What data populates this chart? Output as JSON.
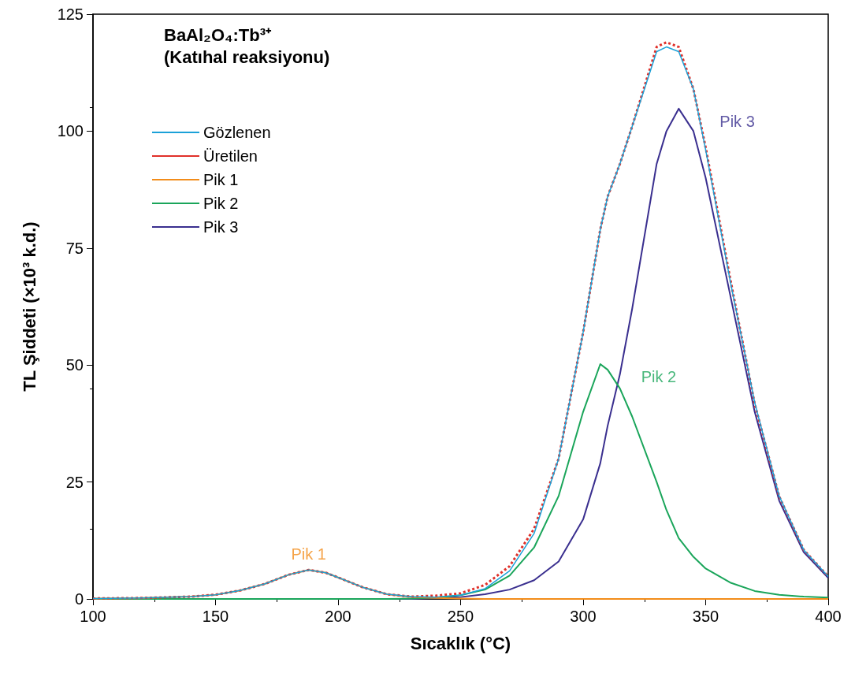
{
  "chart_data": {
    "type": "line",
    "title": "BaAl₂O₄:Tb³⁺",
    "subtitle": "(Katıhal reaksiyonu)",
    "xlabel": "Sıcaklık (°C)",
    "ylabel": "TL Şiddeti (×10³ k.d.)",
    "x": [
      100,
      120,
      140,
      150,
      160,
      170,
      180,
      188,
      195,
      200,
      210,
      220,
      230,
      240,
      250,
      260,
      270,
      280,
      290,
      300,
      307,
      310,
      315,
      320,
      330,
      334,
      339,
      345,
      350,
      360,
      370,
      380,
      390,
      400
    ],
    "series": [
      {
        "name": "Gözlenen",
        "color": "#1ba1d8",
        "values": [
          0.1,
          0.2,
          0.5,
          0.9,
          1.8,
          3.2,
          5.2,
          6.2,
          5.6,
          4.6,
          2.5,
          1.0,
          0.5,
          0.4,
          0.8,
          2.2,
          6,
          14,
          30,
          57,
          79,
          86,
          93,
          101,
          117,
          118,
          117,
          109,
          96,
          68,
          42,
          22,
          10.5,
          4.8
        ]
      },
      {
        "name": "Üretilen",
        "color": "#e0302a",
        "line_style": "dotted",
        "values": [
          0.1,
          0.2,
          0.5,
          0.9,
          1.8,
          3.2,
          5.2,
          6.2,
          5.6,
          4.6,
          2.5,
          1.0,
          0.5,
          0.7,
          1.2,
          3,
          7,
          15,
          30,
          57,
          79,
          86,
          93,
          101,
          118,
          119,
          118,
          109,
          96.5,
          68.5,
          41.7,
          21.9,
          10.5,
          4.8
        ]
      },
      {
        "name": "Pik 1",
        "color": "#f28c1a",
        "values": [
          0.1,
          0.2,
          0.5,
          0.9,
          1.8,
          3.2,
          5.2,
          6.2,
          5.6,
          4.6,
          2.5,
          1.0,
          0.4,
          0.2,
          0.1,
          0,
          0,
          0,
          0,
          0,
          0,
          0,
          0,
          0,
          0,
          0,
          0,
          0,
          0,
          0,
          0,
          0,
          0,
          0
        ]
      },
      {
        "name": "Pik 2",
        "color": "#1aa55a",
        "values": [
          0,
          0,
          0,
          0,
          0,
          0,
          0,
          0,
          0,
          0,
          0,
          0,
          0.1,
          0.3,
          0.8,
          2,
          5,
          11,
          22,
          40,
          50.2,
          49,
          45,
          39,
          25,
          19,
          13,
          9,
          6.5,
          3.5,
          1.7,
          0.9,
          0.5,
          0.3
        ]
      },
      {
        "name": "Pik 3",
        "color": "#3a2f8f",
        "values": [
          0,
          0,
          0,
          0,
          0,
          0,
          0,
          0,
          0,
          0,
          0,
          0,
          0,
          0.2,
          0.4,
          1,
          2,
          4,
          8,
          17,
          29,
          37,
          48,
          62,
          93,
          100,
          104.8,
          100,
          90,
          65,
          40,
          21,
          10,
          4.5
        ]
      }
    ],
    "annotations": [
      "Pik 1",
      "Pik 2",
      "Pik 3"
    ],
    "xlim": [
      100,
      400
    ],
    "xticks": [
      100,
      150,
      200,
      250,
      300,
      350,
      400
    ],
    "ylim": [
      0,
      125
    ],
    "yticks": [
      0,
      25,
      50,
      75,
      100,
      125
    ],
    "grid": false,
    "legend": "top left",
    "marker": "none",
    "line_style": "solid"
  }
}
